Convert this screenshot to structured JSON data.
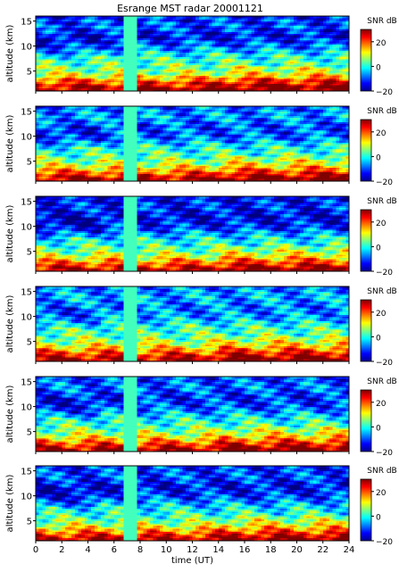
{
  "title": "Esrange MST radar 20001121",
  "colorbar": {
    "label": "SNR dB",
    "colormap": "jet",
    "min": -20,
    "max": 30,
    "ticks": [
      "20",
      "0",
      "−20"
    ],
    "tick_values": [
      20,
      0,
      -20
    ]
  },
  "chart_data": [
    {
      "type": "heatmap",
      "panel": 1,
      "ylabel": "altitude (km)",
      "xlabel": "",
      "xlim": [
        0,
        24
      ],
      "ylim": [
        1,
        16
      ],
      "yticks": [
        5,
        10,
        15
      ],
      "xticks": [
        0,
        2,
        4,
        6,
        8,
        10,
        12,
        14,
        16,
        18,
        20,
        22,
        24
      ],
      "x_tick_labels": [],
      "zlim": [
        -20,
        30
      ],
      "colorscale": "jet",
      "zlabel": "SNR dB",
      "profile_altitude_km": [
        1.5,
        3,
        4.5,
        6,
        8,
        10,
        12,
        14,
        16
      ],
      "profile_snr_db": [
        28,
        20,
        8,
        4,
        0,
        -8,
        -14,
        -10,
        -12
      ],
      "data_gap_hours": [
        [
          7.05,
          7.4
        ]
      ]
    },
    {
      "type": "heatmap",
      "panel": 2,
      "ylabel": "altitude (km)",
      "xlabel": "",
      "xlim": [
        0,
        24
      ],
      "ylim": [
        1,
        16
      ],
      "yticks": [
        5,
        10,
        15
      ],
      "xticks": [
        0,
        2,
        4,
        6,
        8,
        10,
        12,
        14,
        16,
        18,
        20,
        22,
        24
      ],
      "x_tick_labels": [],
      "zlim": [
        -20,
        30
      ],
      "colorscale": "jet",
      "zlabel": "SNR dB",
      "profile_altitude_km": [
        1.5,
        3,
        4.5,
        6,
        8,
        10,
        12,
        14,
        16
      ],
      "profile_snr_db": [
        28,
        18,
        8,
        3,
        -1,
        -9,
        -10,
        -6,
        -9
      ],
      "data_gap_hours": [
        [
          7.05,
          7.4
        ]
      ]
    },
    {
      "type": "heatmap",
      "panel": 3,
      "ylabel": "altitude (km)",
      "xlabel": "",
      "xlim": [
        0,
        24
      ],
      "ylim": [
        1,
        16
      ],
      "yticks": [
        5,
        10,
        15
      ],
      "xticks": [
        0,
        2,
        4,
        6,
        8,
        10,
        12,
        14,
        16,
        18,
        20,
        22,
        24
      ],
      "x_tick_labels": [],
      "zlim": [
        -20,
        30
      ],
      "colorscale": "jet",
      "zlabel": "SNR dB",
      "profile_altitude_km": [
        1.5,
        3,
        4.5,
        6,
        8,
        10,
        12,
        14,
        16
      ],
      "profile_snr_db": [
        27,
        17,
        7,
        2,
        -3,
        -12,
        -15,
        -12,
        -14
      ],
      "data_gap_hours": [
        [
          7.05,
          7.4
        ]
      ]
    },
    {
      "type": "heatmap",
      "panel": 4,
      "ylabel": "altitude (km)",
      "xlabel": "",
      "xlim": [
        0,
        24
      ],
      "ylim": [
        1,
        16
      ],
      "yticks": [
        5,
        10,
        15
      ],
      "xticks": [
        0,
        2,
        4,
        6,
        8,
        10,
        12,
        14,
        16,
        18,
        20,
        22,
        24
      ],
      "x_tick_labels": [],
      "zlim": [
        -20,
        30
      ],
      "colorscale": "jet",
      "zlabel": "SNR dB",
      "profile_altitude_km": [
        1.5,
        3,
        4.5,
        6,
        8,
        10,
        12,
        14,
        16
      ],
      "profile_snr_db": [
        28,
        19,
        9,
        4,
        1,
        -6,
        -8,
        -5,
        -8
      ],
      "data_gap_hours": [
        [
          7.05,
          7.4
        ]
      ]
    },
    {
      "type": "heatmap",
      "panel": 5,
      "ylabel": "altitude (km)",
      "xlabel": "",
      "xlim": [
        0,
        24
      ],
      "ylim": [
        1,
        16
      ],
      "yticks": [
        5,
        10,
        15
      ],
      "xticks": [
        0,
        2,
        4,
        6,
        8,
        10,
        12,
        14,
        16,
        18,
        20,
        22,
        24
      ],
      "x_tick_labels": [],
      "zlim": [
        -20,
        30
      ],
      "colorscale": "jet",
      "zlabel": "SNR dB",
      "profile_altitude_km": [
        1.5,
        3,
        4.5,
        6,
        8,
        10,
        12,
        14,
        16
      ],
      "profile_snr_db": [
        28,
        18,
        8,
        3,
        -2,
        -10,
        -12,
        -8,
        -11
      ],
      "data_gap_hours": [
        [
          7.05,
          7.4
        ]
      ]
    },
    {
      "type": "heatmap",
      "panel": 6,
      "ylabel": "altitude (km)",
      "xlabel": "time (UT)",
      "xlim": [
        0,
        24
      ],
      "ylim": [
        1,
        16
      ],
      "yticks": [
        5,
        10,
        15
      ],
      "xticks": [
        0,
        2,
        4,
        6,
        8,
        10,
        12,
        14,
        16,
        18,
        20,
        22,
        24
      ],
      "x_tick_labels": [
        "0",
        "2",
        "4",
        "6",
        "8",
        "10",
        "12",
        "14",
        "16",
        "18",
        "20",
        "22",
        "24"
      ],
      "zlim": [
        -20,
        30
      ],
      "colorscale": "jet",
      "zlabel": "SNR dB",
      "profile_altitude_km": [
        1.5,
        3,
        4.5,
        6,
        8,
        10,
        12,
        14,
        16
      ],
      "profile_snr_db": [
        27,
        17,
        7,
        2,
        -3,
        -11,
        -14,
        -10,
        -12
      ],
      "data_gap_hours": [
        [
          7.05,
          7.4
        ]
      ]
    }
  ]
}
